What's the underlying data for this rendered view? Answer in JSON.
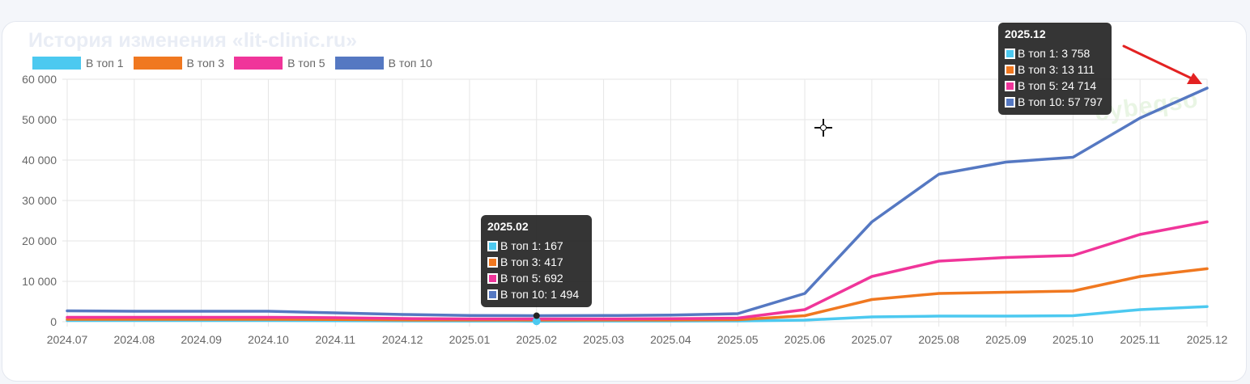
{
  "card": {
    "title": "История изменения «lit-clinic.ru»"
  },
  "watermark": {
    "text": "cybeqso"
  },
  "chart_data": {
    "type": "line",
    "title": "",
    "xlabel": "",
    "ylabel": "",
    "ylim": [
      0,
      60000
    ],
    "yticks": [
      "60 000",
      "50 000",
      "40 000",
      "30 000",
      "20 000",
      "10 000",
      "0"
    ],
    "yticks_values": [
      60000,
      50000,
      40000,
      30000,
      20000,
      10000,
      0
    ],
    "grid": true,
    "legend_position": "top-left",
    "categories": [
      "2024.07",
      "2024.08",
      "2024.09",
      "2024.10",
      "2024.11",
      "2024.12",
      "2025.01",
      "2025.02",
      "2025.03",
      "2025.04",
      "2025.05",
      "2025.06",
      "2025.07",
      "2025.08",
      "2025.09",
      "2025.10",
      "2025.11",
      "2025.12"
    ],
    "series": [
      {
        "name": "В топ 1",
        "color": "#4cc9f0",
        "values": [
          300,
          300,
          300,
          300,
          250,
          200,
          180,
          167,
          170,
          180,
          200,
          400,
          1200,
          1400,
          1400,
          1500,
          3000,
          3758
        ]
      },
      {
        "name": "В топ 3",
        "color": "#f07820",
        "values": [
          600,
          600,
          600,
          600,
          550,
          450,
          420,
          417,
          420,
          430,
          500,
          1500,
          5500,
          7000,
          7300,
          7600,
          11200,
          13111
        ]
      },
      {
        "name": "В топ 5",
        "color": "#f0359a",
        "values": [
          1100,
          1100,
          1100,
          1100,
          1000,
          800,
          700,
          692,
          700,
          750,
          900,
          3000,
          11200,
          15000,
          15900,
          16400,
          21600,
          24714
        ]
      },
      {
        "name": "В топ 10",
        "color": "#5578c2",
        "values": [
          2700,
          2600,
          2600,
          2600,
          2200,
          1800,
          1550,
          1494,
          1550,
          1650,
          2000,
          7000,
          24700,
          36500,
          39500,
          40700,
          50400,
          57797
        ]
      }
    ]
  },
  "tooltips": [
    {
      "title": "2025.02",
      "rows": [
        "В топ 1: 167",
        "В топ 3: 417",
        "В топ 5: 692",
        "В топ 10: 1 494"
      ]
    },
    {
      "title": "2025.12",
      "rows": [
        "В топ 1: 3 758",
        "В топ 3: 13 111",
        "В топ 5: 24 714",
        "В топ 10: 57 797"
      ]
    }
  ]
}
